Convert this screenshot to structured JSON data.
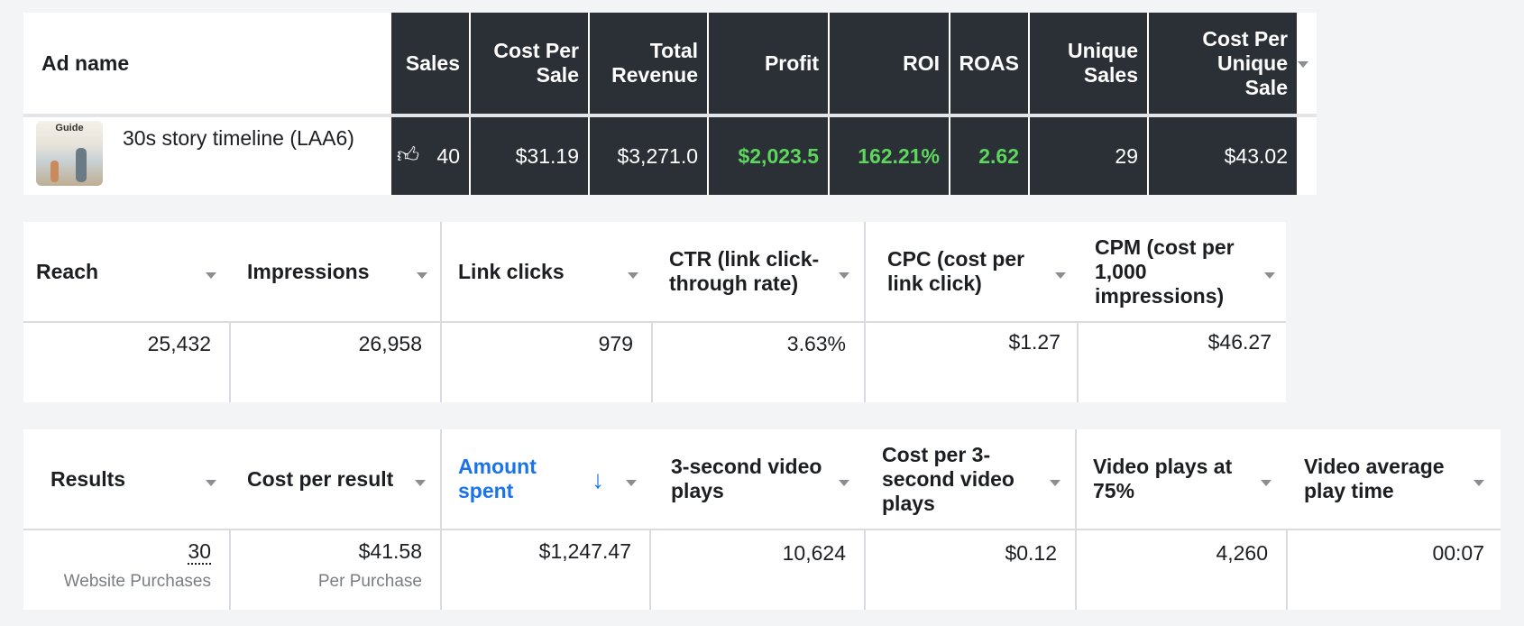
{
  "table1": {
    "columns": [
      "Ad name",
      "Sales",
      "Cost Per Sale",
      "Total Revenue",
      "Profit",
      "ROI",
      "ROAS",
      "Unique Sales",
      "Cost Per Unique Sale"
    ],
    "thumbnail_label": "Guide",
    "row": {
      "ad_name": "30s story timeline (LAA6)",
      "sales": "40",
      "cost_per_sale": "$31.19",
      "total_revenue": "$3,271.0",
      "profit": "$2,023.5",
      "roi": "162.21%",
      "roas": "2.62",
      "unique_sales": "29",
      "cost_per_unique_sale": "$43.02"
    },
    "colors": {
      "header_bg": "#2b2f36",
      "positive": "#5cd65c"
    }
  },
  "table2": {
    "columns": [
      "Reach",
      "Impressions",
      "Link clicks",
      "CTR (link click-through rate)",
      "CPC (cost per link click)",
      "CPM (cost per 1,000 impressions)"
    ],
    "row": {
      "reach": "25,432",
      "impressions": "26,958",
      "link_clicks": "979",
      "ctr": "3.63%",
      "cpc": "$1.27",
      "cpm": "$46.27"
    }
  },
  "table3": {
    "columns": [
      "Results",
      "Cost per result",
      "Amount spent",
      "3-second video plays",
      "Cost per 3-second video plays",
      "Video plays at 75%",
      "Video average play time"
    ],
    "sort_arrow": "↓",
    "row": {
      "results": "30",
      "results_sub": "Website Purchases",
      "cost_per_result": "$41.58",
      "cost_per_result_sub": "Per Purchase",
      "amount_spent": "$1,247.47",
      "video_plays_3s": "10,624",
      "cost_per_3s": "$0.12",
      "video_plays_75": "4,260",
      "avg_play_time": "00:07"
    },
    "colors": {
      "sorted_header": "#1a73e8"
    }
  }
}
